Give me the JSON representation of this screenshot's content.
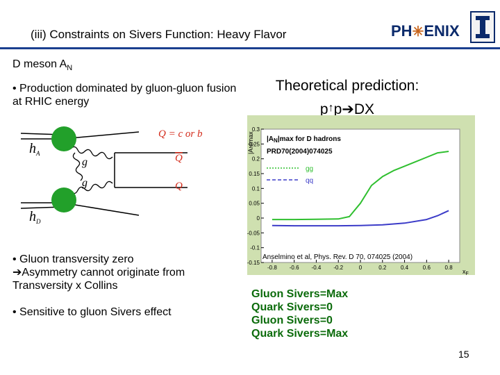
{
  "header": {
    "title": "(iii) Constraints on Sivers Function: Heavy Flavor",
    "logo_phenix_left": "PH",
    "logo_phenix_right": "ENIX"
  },
  "subtitle": {
    "main": "D meson A",
    "sub": "N"
  },
  "bullets": {
    "b1": "• Production dominated by gluon-gluon fusion at RHIC energy",
    "b2_line1": "• Gluon transversity zero",
    "b2_line2": "Asymmetry cannot originate from Transversity x  Collins",
    "b3": "• Sensitive to gluon Sivers effect"
  },
  "theory": {
    "line1": "Theoretical prediction:",
    "line2_a": "p",
    "line2_b": "p",
    "line2_c": "DX"
  },
  "diagram": {
    "hA": "h",
    "hA_sub": "A",
    "hB": "h",
    "hB_sub": "D",
    "g": "g",
    "Q_label": "Q = c or b",
    "Qbar_label": "Q",
    "Q2_label": "Q"
  },
  "plot": {
    "ylabel": "|A",
    "ylabel2": "N",
    "ylabel3": "|max",
    "legend_title": "|A",
    "legend_title2": "N",
    "legend_title3": "|max for D hadrons",
    "legend_ref": "PRD70(2004)074025",
    "legend_gg": "gg",
    "legend_qq": "qq",
    "xlabel": "x",
    "xlabel_sub": "F",
    "yticks": [
      "0.3",
      "0.25",
      "0.2",
      "0.15",
      "0.1",
      "0.05",
      "0",
      "-0.05",
      "-0.1",
      "-0.15"
    ],
    "xticks": [
      "-0.8",
      "-0.6",
      "-0.4",
      "-0.2",
      "0",
      "0.2",
      "0.4",
      "0.6",
      "0.8"
    ],
    "citation": "Anselmino et al, Phys. Rev. D 70, 074025 (2004)",
    "gg_color": "#2fbf2f",
    "qq_color": "#3b3bc8"
  },
  "chart_data": {
    "type": "line",
    "xlabel": "x_F",
    "ylabel": "|A_N|max",
    "title": "|A_N|max for D hadrons",
    "xlim": [
      -0.9,
      0.9
    ],
    "ylim": [
      -0.15,
      0.3
    ],
    "series": [
      {
        "name": "gg",
        "x": [
          -0.8,
          -0.6,
          -0.4,
          -0.2,
          -0.1,
          0,
          0.1,
          0.2,
          0.3,
          0.4,
          0.5,
          0.6,
          0.7,
          0.8
        ],
        "y": [
          -0.005,
          -0.005,
          -0.004,
          -0.003,
          0.005,
          0.05,
          0.11,
          0.14,
          0.16,
          0.175,
          0.19,
          0.205,
          0.22,
          0.225
        ]
      },
      {
        "name": "qq",
        "x": [
          -0.8,
          -0.6,
          -0.4,
          -0.2,
          0,
          0.2,
          0.4,
          0.6,
          0.7,
          0.8
        ],
        "y": [
          -0.025,
          -0.026,
          -0.026,
          -0.026,
          -0.025,
          -0.023,
          -0.017,
          -0.005,
          0.008,
          0.025
        ]
      }
    ]
  },
  "results": [
    "Gluon Sivers=Max",
    "Quark Sivers=0",
    "Gluon Sivers=0",
    "Quark Sivers=Max"
  ],
  "page_number": "15"
}
